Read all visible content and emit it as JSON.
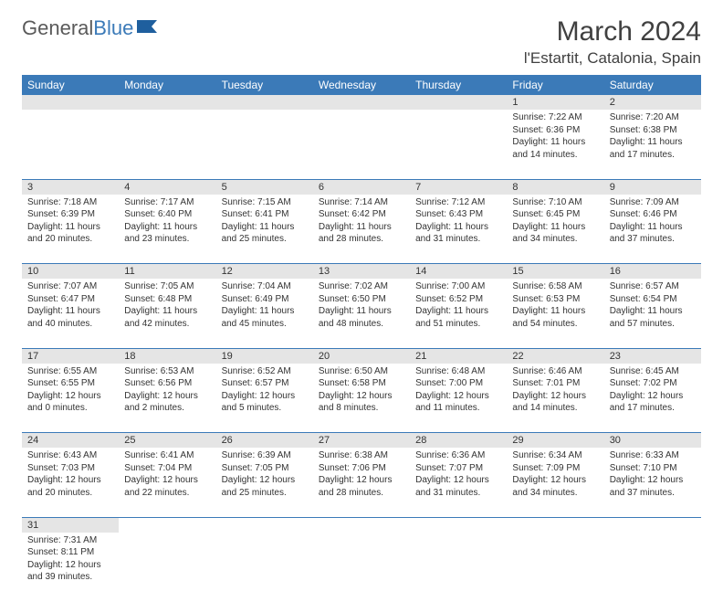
{
  "logo": {
    "part1": "General",
    "part2": "Blue"
  },
  "title": "March 2024",
  "location": "l'Estartit, Catalonia, Spain",
  "colors": {
    "header_bg": "#3b7ab8",
    "daynum_bg": "#e5e5e5",
    "border": "#3b7ab8"
  },
  "dayHeaders": [
    "Sunday",
    "Monday",
    "Tuesday",
    "Wednesday",
    "Thursday",
    "Friday",
    "Saturday"
  ],
  "weeks": [
    [
      null,
      null,
      null,
      null,
      null,
      {
        "n": "1",
        "sr": "Sunrise: 7:22 AM",
        "ss": "Sunset: 6:36 PM",
        "dl": "Daylight: 11 hours and 14 minutes."
      },
      {
        "n": "2",
        "sr": "Sunrise: 7:20 AM",
        "ss": "Sunset: 6:38 PM",
        "dl": "Daylight: 11 hours and 17 minutes."
      }
    ],
    [
      {
        "n": "3",
        "sr": "Sunrise: 7:18 AM",
        "ss": "Sunset: 6:39 PM",
        "dl": "Daylight: 11 hours and 20 minutes."
      },
      {
        "n": "4",
        "sr": "Sunrise: 7:17 AM",
        "ss": "Sunset: 6:40 PM",
        "dl": "Daylight: 11 hours and 23 minutes."
      },
      {
        "n": "5",
        "sr": "Sunrise: 7:15 AM",
        "ss": "Sunset: 6:41 PM",
        "dl": "Daylight: 11 hours and 25 minutes."
      },
      {
        "n": "6",
        "sr": "Sunrise: 7:14 AM",
        "ss": "Sunset: 6:42 PM",
        "dl": "Daylight: 11 hours and 28 minutes."
      },
      {
        "n": "7",
        "sr": "Sunrise: 7:12 AM",
        "ss": "Sunset: 6:43 PM",
        "dl": "Daylight: 11 hours and 31 minutes."
      },
      {
        "n": "8",
        "sr": "Sunrise: 7:10 AM",
        "ss": "Sunset: 6:45 PM",
        "dl": "Daylight: 11 hours and 34 minutes."
      },
      {
        "n": "9",
        "sr": "Sunrise: 7:09 AM",
        "ss": "Sunset: 6:46 PM",
        "dl": "Daylight: 11 hours and 37 minutes."
      }
    ],
    [
      {
        "n": "10",
        "sr": "Sunrise: 7:07 AM",
        "ss": "Sunset: 6:47 PM",
        "dl": "Daylight: 11 hours and 40 minutes."
      },
      {
        "n": "11",
        "sr": "Sunrise: 7:05 AM",
        "ss": "Sunset: 6:48 PM",
        "dl": "Daylight: 11 hours and 42 minutes."
      },
      {
        "n": "12",
        "sr": "Sunrise: 7:04 AM",
        "ss": "Sunset: 6:49 PM",
        "dl": "Daylight: 11 hours and 45 minutes."
      },
      {
        "n": "13",
        "sr": "Sunrise: 7:02 AM",
        "ss": "Sunset: 6:50 PM",
        "dl": "Daylight: 11 hours and 48 minutes."
      },
      {
        "n": "14",
        "sr": "Sunrise: 7:00 AM",
        "ss": "Sunset: 6:52 PM",
        "dl": "Daylight: 11 hours and 51 minutes."
      },
      {
        "n": "15",
        "sr": "Sunrise: 6:58 AM",
        "ss": "Sunset: 6:53 PM",
        "dl": "Daylight: 11 hours and 54 minutes."
      },
      {
        "n": "16",
        "sr": "Sunrise: 6:57 AM",
        "ss": "Sunset: 6:54 PM",
        "dl": "Daylight: 11 hours and 57 minutes."
      }
    ],
    [
      {
        "n": "17",
        "sr": "Sunrise: 6:55 AM",
        "ss": "Sunset: 6:55 PM",
        "dl": "Daylight: 12 hours and 0 minutes."
      },
      {
        "n": "18",
        "sr": "Sunrise: 6:53 AM",
        "ss": "Sunset: 6:56 PM",
        "dl": "Daylight: 12 hours and 2 minutes."
      },
      {
        "n": "19",
        "sr": "Sunrise: 6:52 AM",
        "ss": "Sunset: 6:57 PM",
        "dl": "Daylight: 12 hours and 5 minutes."
      },
      {
        "n": "20",
        "sr": "Sunrise: 6:50 AM",
        "ss": "Sunset: 6:58 PM",
        "dl": "Daylight: 12 hours and 8 minutes."
      },
      {
        "n": "21",
        "sr": "Sunrise: 6:48 AM",
        "ss": "Sunset: 7:00 PM",
        "dl": "Daylight: 12 hours and 11 minutes."
      },
      {
        "n": "22",
        "sr": "Sunrise: 6:46 AM",
        "ss": "Sunset: 7:01 PM",
        "dl": "Daylight: 12 hours and 14 minutes."
      },
      {
        "n": "23",
        "sr": "Sunrise: 6:45 AM",
        "ss": "Sunset: 7:02 PM",
        "dl": "Daylight: 12 hours and 17 minutes."
      }
    ],
    [
      {
        "n": "24",
        "sr": "Sunrise: 6:43 AM",
        "ss": "Sunset: 7:03 PM",
        "dl": "Daylight: 12 hours and 20 minutes."
      },
      {
        "n": "25",
        "sr": "Sunrise: 6:41 AM",
        "ss": "Sunset: 7:04 PM",
        "dl": "Daylight: 12 hours and 22 minutes."
      },
      {
        "n": "26",
        "sr": "Sunrise: 6:39 AM",
        "ss": "Sunset: 7:05 PM",
        "dl": "Daylight: 12 hours and 25 minutes."
      },
      {
        "n": "27",
        "sr": "Sunrise: 6:38 AM",
        "ss": "Sunset: 7:06 PM",
        "dl": "Daylight: 12 hours and 28 minutes."
      },
      {
        "n": "28",
        "sr": "Sunrise: 6:36 AM",
        "ss": "Sunset: 7:07 PM",
        "dl": "Daylight: 12 hours and 31 minutes."
      },
      {
        "n": "29",
        "sr": "Sunrise: 6:34 AM",
        "ss": "Sunset: 7:09 PM",
        "dl": "Daylight: 12 hours and 34 minutes."
      },
      {
        "n": "30",
        "sr": "Sunrise: 6:33 AM",
        "ss": "Sunset: 7:10 PM",
        "dl": "Daylight: 12 hours and 37 minutes."
      }
    ],
    [
      {
        "n": "31",
        "sr": "Sunrise: 7:31 AM",
        "ss": "Sunset: 8:11 PM",
        "dl": "Daylight: 12 hours and 39 minutes."
      },
      null,
      null,
      null,
      null,
      null,
      null
    ]
  ]
}
